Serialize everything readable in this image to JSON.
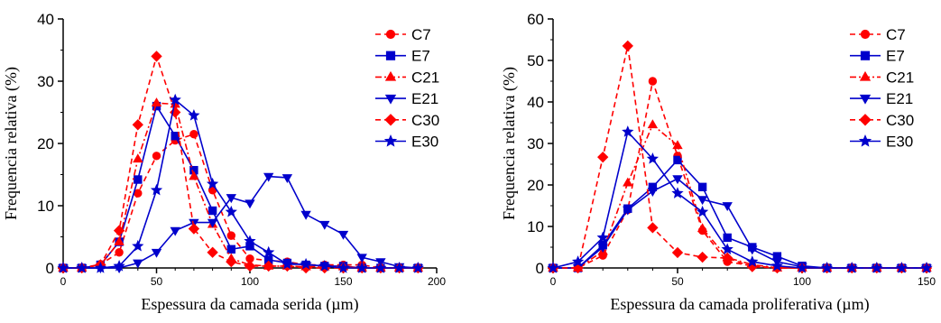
{
  "chart_data": [
    {
      "type": "line",
      "xlabel": "Espessura da camada serida  (µm)",
      "ylabel": "Frequencia relativa (%)",
      "xlim": [
        0,
        200
      ],
      "ylim": [
        0,
        40
      ],
      "xticks": [
        0,
        50,
        100,
        150,
        200
      ],
      "yticks": [
        0,
        10,
        20,
        30,
        40
      ],
      "legend_position": "top-right",
      "grid": false,
      "series": [
        {
          "name": "C7",
          "color": "#ff0000",
          "dash": "dashed",
          "marker": "circle",
          "x": [
            0,
            10,
            20,
            30,
            40,
            50,
            60,
            70,
            80,
            90,
            100,
            110,
            120,
            130,
            140,
            150,
            160,
            170,
            180,
            190
          ],
          "y": [
            0,
            0,
            0.6,
            2.5,
            12,
            18,
            20.5,
            21.5,
            12.5,
            5.2,
            1.5,
            1.2,
            1.0,
            0.5,
            0.5,
            0.5,
            0.5,
            0,
            0,
            0
          ]
        },
        {
          "name": "E7",
          "color": "#0000cc",
          "dash": "solid",
          "marker": "square",
          "x": [
            0,
            10,
            20,
            30,
            40,
            50,
            60,
            70,
            80,
            90,
            100,
            110,
            120,
            130,
            140,
            150,
            160,
            170,
            180,
            190
          ],
          "y": [
            0,
            0,
            0.5,
            4.2,
            14.2,
            26,
            21.2,
            15.7,
            9.2,
            3,
            3.5,
            1.3,
            0.8,
            0.5,
            0.3,
            0.3,
            0,
            0,
            0,
            0
          ]
        },
        {
          "name": "C21",
          "color": "#ff0000",
          "dash": "dashdot",
          "marker": "triangle-up",
          "x": [
            0,
            10,
            20,
            30,
            40,
            50,
            60,
            70,
            80,
            90,
            100,
            110,
            120,
            130,
            140,
            150,
            160,
            170,
            180,
            190
          ],
          "y": [
            0,
            0,
            0.5,
            4.2,
            17.5,
            26.5,
            26.3,
            14.7,
            7,
            1.5,
            0.5,
            0.3,
            0.3,
            0.2,
            0.2,
            0.2,
            0,
            0,
            0,
            0
          ]
        },
        {
          "name": "E21",
          "color": "#0000cc",
          "dash": "solid",
          "marker": "triangle-down",
          "x": [
            0,
            10,
            20,
            30,
            40,
            50,
            60,
            70,
            80,
            90,
            100,
            110,
            120,
            130,
            140,
            150,
            160,
            170,
            180,
            190
          ],
          "y": [
            0,
            0,
            0,
            0,
            0.8,
            2.5,
            6,
            7.3,
            7.3,
            11.3,
            10.4,
            14.7,
            14.5,
            8.6,
            7,
            5.4,
            1.7,
            1,
            0.2,
            0
          ]
        },
        {
          "name": "C30",
          "color": "#ff0000",
          "dash": "dashed",
          "marker": "diamond",
          "x": [
            0,
            10,
            20,
            30,
            40,
            50,
            60,
            70,
            80,
            90,
            100,
            110,
            120,
            130,
            140,
            150,
            160,
            170,
            180,
            190
          ],
          "y": [
            0,
            0,
            0.5,
            6,
            23,
            34,
            25,
            6.3,
            2.5,
            1,
            0.3,
            0.3,
            0.3,
            0,
            0,
            0,
            0,
            0,
            0,
            0
          ]
        },
        {
          "name": "E30",
          "color": "#0000cc",
          "dash": "solid",
          "marker": "star",
          "x": [
            0,
            10,
            20,
            30,
            40,
            50,
            60,
            70,
            80,
            90,
            100,
            110,
            120,
            130,
            140,
            150,
            160,
            170,
            180,
            190
          ],
          "y": [
            0,
            0,
            0,
            0.3,
            3.5,
            12.5,
            27,
            24.5,
            13.5,
            9,
            4.3,
            2.5,
            0.6,
            0.6,
            0.3,
            0,
            0,
            0,
            0,
            0
          ]
        }
      ]
    },
    {
      "type": "line",
      "xlabel": "Espessura da camada proliferativa (µm)",
      "ylabel": "Frequencia relativa (%)",
      "xlim": [
        0,
        150
      ],
      "ylim": [
        0,
        60
      ],
      "xticks": [
        0,
        50,
        100,
        150
      ],
      "yticks": [
        0,
        10,
        20,
        30,
        40,
        50,
        60
      ],
      "legend_position": "top-right",
      "grid": false,
      "series": [
        {
          "name": "C7",
          "color": "#ff0000",
          "dash": "dashed",
          "marker": "circle",
          "x": [
            0,
            10,
            20,
            30,
            40,
            50,
            60,
            70,
            80,
            90,
            100,
            110,
            120,
            130,
            140,
            150
          ],
          "y": [
            0,
            0,
            3,
            14,
            45,
            27,
            9,
            1.5,
            0.5,
            0,
            0,
            0,
            0,
            0,
            0,
            0
          ]
        },
        {
          "name": "E7",
          "color": "#0000cc",
          "dash": "solid",
          "marker": "square",
          "x": [
            0,
            10,
            20,
            30,
            40,
            50,
            60,
            70,
            80,
            90,
            100,
            110,
            120,
            130,
            140,
            150
          ],
          "y": [
            0,
            0,
            5.5,
            14.3,
            19.5,
            26,
            19.5,
            7.3,
            5,
            2.8,
            0.5,
            0,
            0,
            0,
            0,
            0
          ]
        },
        {
          "name": "C21",
          "color": "#ff0000",
          "dash": "dashdot",
          "marker": "triangle-up",
          "x": [
            0,
            10,
            20,
            30,
            40,
            50,
            60,
            70,
            80,
            90,
            100,
            110,
            120,
            130,
            140,
            150
          ],
          "y": [
            0,
            0,
            4,
            20.5,
            34.5,
            29.5,
            9.5,
            2.5,
            0.8,
            0,
            0,
            0,
            0,
            0,
            0,
            0
          ]
        },
        {
          "name": "E21",
          "color": "#0000cc",
          "dash": "solid",
          "marker": "triangle-down",
          "x": [
            0,
            10,
            20,
            30,
            40,
            50,
            60,
            70,
            80,
            90,
            100,
            110,
            120,
            130,
            140,
            150
          ],
          "y": [
            0,
            0,
            5,
            14,
            18.5,
            21.5,
            16.5,
            15,
            4.5,
            1.5,
            0.3,
            0,
            0,
            0,
            0,
            0
          ]
        },
        {
          "name": "C30",
          "color": "#ff0000",
          "dash": "dashed",
          "marker": "diamond",
          "x": [
            0,
            10,
            20,
            30,
            40,
            50,
            60,
            70,
            80,
            90,
            100,
            110,
            120,
            130,
            140,
            150
          ],
          "y": [
            0,
            0,
            26.7,
            53.5,
            9.7,
            3.7,
            2.6,
            2.4,
            0.3,
            0,
            0,
            0,
            0,
            0,
            0,
            0
          ]
        },
        {
          "name": "E30",
          "color": "#0000cc",
          "dash": "solid",
          "marker": "star",
          "x": [
            0,
            10,
            20,
            30,
            40,
            50,
            60,
            70,
            80,
            90,
            100,
            110,
            120,
            130,
            140,
            150
          ],
          "y": [
            0,
            1.5,
            7.3,
            32.8,
            26.3,
            18,
            13.5,
            4.5,
            1.5,
            0.5,
            0,
            0,
            0,
            0,
            0,
            0
          ]
        }
      ]
    }
  ]
}
